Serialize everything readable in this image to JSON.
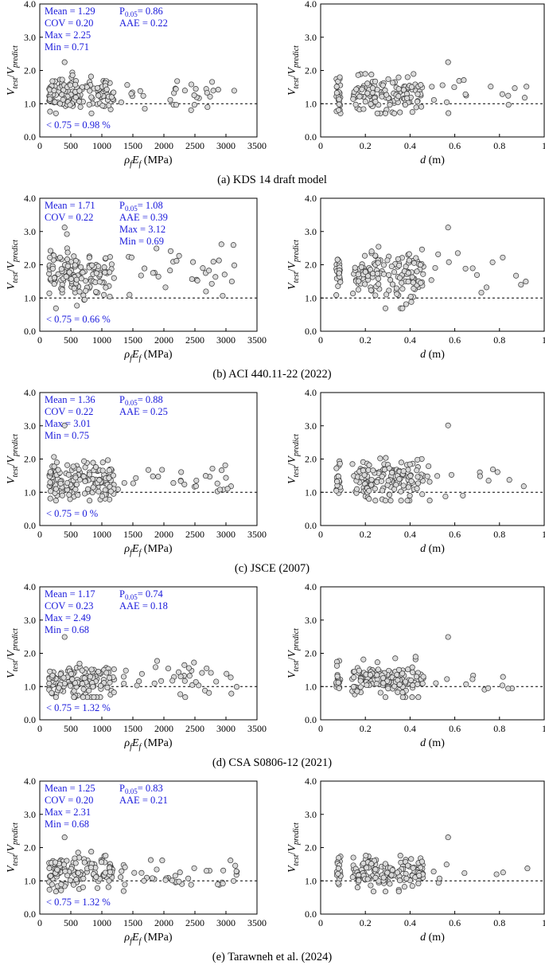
{
  "figure_description": "",
  "chart_data": [
    {
      "type": "scatter",
      "caption": "(a) KDS 14 draft model",
      "y_label": {
        "main": "V",
        "sub1": "test",
        "sep": "/",
        "main2": "V",
        "sub2": "predict"
      },
      "stats": [
        "Mean = 1.29",
        "COV = 0.20",
        "Max = 2.25",
        "Min =  0.71"
      ],
      "stats_right": [
        {
          "pre": "P",
          "sub": "0.05",
          "post": "= 0.86"
        },
        {
          "pre": "AAE = 0.22",
          "sub": "",
          "post": ""
        }
      ],
      "below_text": "< 0.75 = 0.98 %",
      "ylim": [
        0,
        4
      ],
      "yticks": [
        "0.0",
        "1.0",
        "2.0",
        "3.0",
        "4.0"
      ],
      "mean": 1.29,
      "spread": 0.26,
      "min": 0.71,
      "max": 2.25,
      "left": {
        "xlabel": {
          "pre": "ρ",
          "sub1": "f",
          "mid": "E",
          "sub2": "f",
          "post": " (MPa)"
        },
        "xlim": [
          0,
          3500
        ],
        "xticks": [
          "0",
          "500",
          "1000",
          "1500",
          "2000",
          "2500",
          "3000",
          "3500"
        ]
      },
      "right": {
        "xlabel": {
          "pre": "d",
          "post": " (m)"
        },
        "xlim": [
          0,
          1
        ],
        "xticks": [
          "0",
          "0.2",
          "0.4",
          "0.6",
          "0.8",
          "1"
        ]
      }
    },
    {
      "type": "scatter",
      "caption": "(b) ACI 440.11-22 (2022)",
      "y_label": {
        "main": "V",
        "sub1": "test",
        "sep": "/",
        "main2": "V",
        "sub2": "predict"
      },
      "stats": [
        "Mean = 1.71",
        "COV = 0.22"
      ],
      "stats_right": [
        {
          "pre": "P",
          "sub": "0.05",
          "post": "= 1.08"
        },
        {
          "pre": "AAE = 0.39",
          "sub": "",
          "post": ""
        },
        {
          "pre": "Max = 3.12",
          "sub": "",
          "post": ""
        },
        {
          "pre": "Min =  0.69",
          "sub": "",
          "post": ""
        }
      ],
      "below_text": "< 0.75 = 0.66 %",
      "ylim": [
        0,
        4
      ],
      "yticks": [
        "0.0",
        "1.0",
        "2.0",
        "3.0",
        "4.0"
      ],
      "mean": 1.71,
      "spread": 0.37,
      "min": 0.69,
      "max": 3.12,
      "left": {
        "xlabel": {
          "pre": "ρ",
          "sub1": "f",
          "mid": "E",
          "sub2": "f",
          "post": " (MPa)"
        },
        "xlim": [
          0,
          3500
        ],
        "xticks": [
          "0",
          "500",
          "1000",
          "1500",
          "2000",
          "2500",
          "3000",
          "3500"
        ]
      },
      "right": {
        "xlabel": {
          "pre": "d",
          "post": " (m)"
        },
        "xlim": [
          0,
          1
        ],
        "xticks": [
          "0",
          "0.2",
          "0.4",
          "0.6",
          "0.8",
          "1"
        ]
      }
    },
    {
      "type": "scatter",
      "caption": "(c) JSCE (2007)",
      "y_label": {
        "main": "V",
        "sub1": "test",
        "sep": "/",
        "main2": "V",
        "sub2": "predict"
      },
      "stats": [
        "Mean = 1.36",
        "COV = 0.22",
        "Max = 3.01",
        "Min =  0.75"
      ],
      "stats_right": [
        {
          "pre": "P",
          "sub": "0.05",
          "post": "= 0.88"
        },
        {
          "pre": "AAE = 0.25",
          "sub": "",
          "post": ""
        }
      ],
      "below_text": "< 0.75 = 0 %",
      "ylim": [
        0,
        4
      ],
      "yticks": [
        "0.0",
        "1.0",
        "2.0",
        "3.0",
        "4.0"
      ],
      "mean": 1.36,
      "spread": 0.3,
      "min": 0.75,
      "max": 3.01,
      "left": {
        "xlabel": {
          "pre": "ρ",
          "sub1": "f",
          "mid": "E",
          "sub2": "f",
          "post": " (MPa)"
        },
        "xlim": [
          0,
          3500
        ],
        "xticks": [
          "0",
          "500",
          "1000",
          "1500",
          "2000",
          "2500",
          "3000",
          "3500"
        ]
      },
      "right": {
        "xlabel": {
          "pre": "d",
          "post": " (m)"
        },
        "xlim": [
          0,
          1
        ],
        "xticks": [
          "0",
          "0.2",
          "0.4",
          "0.6",
          "0.8",
          "1"
        ]
      }
    },
    {
      "type": "scatter",
      "caption": "(d) CSA S0806-12 (2021)",
      "y_label": {
        "main": "V",
        "sub1": "test",
        "sep": "/",
        "main2": "V",
        "sub2": "predict"
      },
      "stats": [
        "Mean = 1.17",
        "COV = 0.23",
        "Max = 2.49",
        "Min =  0.68"
      ],
      "stats_right": [
        {
          "pre": "P",
          "sub": "0.05",
          "post": "= 0.74"
        },
        {
          "pre": "AAE = 0.18",
          "sub": "",
          "post": ""
        }
      ],
      "below_text": "< 0.75 = 1.32 %",
      "ylim": [
        0,
        4
      ],
      "yticks": [
        "0.0",
        "1.0",
        "2.0",
        "3.0",
        "4.0"
      ],
      "mean": 1.17,
      "spread": 0.25,
      "min": 0.68,
      "max": 2.49,
      "left": {
        "xlabel": {
          "pre": "ρ",
          "sub1": "f",
          "mid": "E",
          "sub2": "f",
          "post": " (MPa)"
        },
        "xlim": [
          0,
          3500
        ],
        "xticks": [
          "0",
          "500",
          "1000",
          "1500",
          "2000",
          "2500",
          "3000",
          "3500"
        ]
      },
      "right": {
        "xlabel": {
          "pre": "d",
          "post": " (m)"
        },
        "xlim": [
          0,
          1
        ],
        "xticks": [
          "0",
          "0.2",
          "0.4",
          "0.6",
          "0.8",
          "1"
        ]
      }
    },
    {
      "type": "scatter",
      "caption": "(e) Tarawneh et al. (2024)",
      "y_label": {
        "main": "V",
        "sub1": "test",
        "sep": "/",
        "main2": "V",
        "sub2": "predict"
      },
      "stats": [
        "Mean = 1.25",
        "COV = 0.20",
        "Max = 2.31",
        "Min =  0.68"
      ],
      "stats_right": [
        {
          "pre": "P",
          "sub": "0.05",
          "post": "= 0.83"
        },
        {
          "pre": "AAE = 0.21",
          "sub": "",
          "post": ""
        }
      ],
      "below_text": "< 0.75 = 1.32 %",
      "ylim": [
        0,
        4
      ],
      "yticks": [
        "0.0",
        "1.0",
        "2.0",
        "3.0",
        "4.0"
      ],
      "mean": 1.25,
      "spread": 0.24,
      "min": 0.68,
      "max": 2.31,
      "left": {
        "xlabel": {
          "pre": "ρ",
          "sub1": "f",
          "mid": "E",
          "sub2": "f",
          "post": " (MPa)"
        },
        "xlim": [
          0,
          3500
        ],
        "xticks": [
          "0",
          "500",
          "1000",
          "1500",
          "2000",
          "2500",
          "3000",
          "3500"
        ]
      },
      "right": {
        "xlabel": {
          "pre": "d",
          "post": " (m)"
        },
        "xlim": [
          0,
          1
        ],
        "xticks": [
          "0",
          "0.2",
          "0.4",
          "0.6",
          "0.8",
          "1"
        ]
      }
    }
  ],
  "colors": {
    "stat_text": "#1a1adb",
    "marker_fill": "#d9d9d9",
    "marker_edge": "#333333"
  }
}
